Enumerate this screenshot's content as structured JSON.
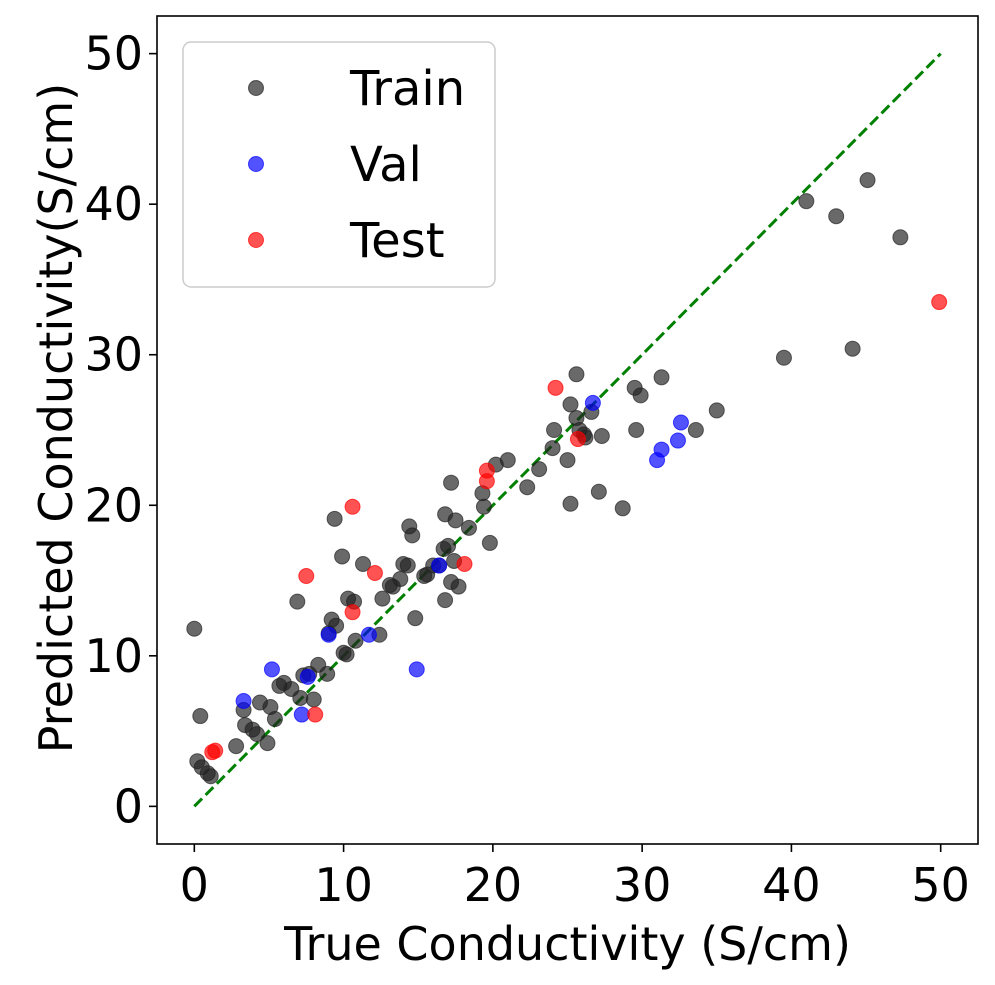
{
  "chart_data": {
    "type": "scatter",
    "xlabel": "True Conductivity (S/cm)",
    "ylabel": "Predicted Conductivity(S/cm)",
    "xlim": [
      -2.5,
      52.5
    ],
    "ylim": [
      -2.5,
      52.5
    ],
    "xticks": [
      0,
      10,
      20,
      30,
      40,
      50
    ],
    "yticks": [
      0,
      10,
      20,
      30,
      40,
      50
    ],
    "grid": false,
    "legend_position": "top-left",
    "reference_line": {
      "style": "dashed",
      "color": "#008000",
      "from": [
        0,
        0
      ],
      "to": [
        50,
        50
      ]
    },
    "series": [
      {
        "name": "Train",
        "color": "#222222",
        "points": [
          [
            0.0,
            11.8
          ],
          [
            0.4,
            6.0
          ],
          [
            0.2,
            3.0
          ],
          [
            0.5,
            2.6
          ],
          [
            0.9,
            2.2
          ],
          [
            1.1,
            2.0
          ],
          [
            2.8,
            4.0
          ],
          [
            3.4,
            5.4
          ],
          [
            3.3,
            6.4
          ],
          [
            3.9,
            5.1
          ],
          [
            4.2,
            4.8
          ],
          [
            4.4,
            6.9
          ],
          [
            4.9,
            4.2
          ],
          [
            5.1,
            6.6
          ],
          [
            5.4,
            5.8
          ],
          [
            5.7,
            8.0
          ],
          [
            6.0,
            8.2
          ],
          [
            6.5,
            7.8
          ],
          [
            6.9,
            13.6
          ],
          [
            7.1,
            7.2
          ],
          [
            7.3,
            8.7
          ],
          [
            7.7,
            8.8
          ],
          [
            8.0,
            7.1
          ],
          [
            8.3,
            9.4
          ],
          [
            8.9,
            8.8
          ],
          [
            9.0,
            11.5
          ],
          [
            9.2,
            12.4
          ],
          [
            9.4,
            19.1
          ],
          [
            9.5,
            12.0
          ],
          [
            9.9,
            16.6
          ],
          [
            10.0,
            10.2
          ],
          [
            10.2,
            10.1
          ],
          [
            10.3,
            13.8
          ],
          [
            10.7,
            13.6
          ],
          [
            10.8,
            11.0
          ],
          [
            11.3,
            16.1
          ],
          [
            12.4,
            11.4
          ],
          [
            12.6,
            13.8
          ],
          [
            13.1,
            14.7
          ],
          [
            13.3,
            14.6
          ],
          [
            13.8,
            15.1
          ],
          [
            14.0,
            16.1
          ],
          [
            14.3,
            16.0
          ],
          [
            14.4,
            18.6
          ],
          [
            14.6,
            18.0
          ],
          [
            14.8,
            12.5
          ],
          [
            15.4,
            15.3
          ],
          [
            15.6,
            15.4
          ],
          [
            16.0,
            16.0
          ],
          [
            16.4,
            16.0
          ],
          [
            16.7,
            17.1
          ],
          [
            16.8,
            19.4
          ],
          [
            16.8,
            13.7
          ],
          [
            17.0,
            17.3
          ],
          [
            17.2,
            21.5
          ],
          [
            17.2,
            14.9
          ],
          [
            17.4,
            16.3
          ],
          [
            17.5,
            19.0
          ],
          [
            17.7,
            14.6
          ],
          [
            18.4,
            18.5
          ],
          [
            19.3,
            20.8
          ],
          [
            19.4,
            19.9
          ],
          [
            19.8,
            17.5
          ],
          [
            20.2,
            22.7
          ],
          [
            21.0,
            23.0
          ],
          [
            22.3,
            21.2
          ],
          [
            23.1,
            22.4
          ],
          [
            24.0,
            23.8
          ],
          [
            24.1,
            25.0
          ],
          [
            25.0,
            23.0
          ],
          [
            25.2,
            26.7
          ],
          [
            25.2,
            20.1
          ],
          [
            25.6,
            28.7
          ],
          [
            25.6,
            25.8
          ],
          [
            25.8,
            25.0
          ],
          [
            26.1,
            24.7
          ],
          [
            26.2,
            24.5
          ],
          [
            26.6,
            26.2
          ],
          [
            27.1,
            20.9
          ],
          [
            27.3,
            24.6
          ],
          [
            28.7,
            19.8
          ],
          [
            29.5,
            27.8
          ],
          [
            29.6,
            25.0
          ],
          [
            29.9,
            27.3
          ],
          [
            31.3,
            28.5
          ],
          [
            33.6,
            25.0
          ],
          [
            35.0,
            26.3
          ],
          [
            39.5,
            29.8
          ],
          [
            41.0,
            40.2
          ],
          [
            43.0,
            39.2
          ],
          [
            44.1,
            30.4
          ],
          [
            45.1,
            41.6
          ],
          [
            47.3,
            37.8
          ]
        ]
      },
      {
        "name": "Val",
        "color": "#0000ff",
        "points": [
          [
            3.3,
            7.0
          ],
          [
            5.2,
            9.1
          ],
          [
            7.2,
            6.1
          ],
          [
            7.6,
            8.6
          ],
          [
            9.0,
            11.4
          ],
          [
            11.7,
            11.4
          ],
          [
            14.9,
            9.1
          ],
          [
            16.4,
            16.0
          ],
          [
            26.7,
            26.8
          ],
          [
            31.0,
            23.0
          ],
          [
            31.3,
            23.7
          ],
          [
            32.4,
            24.3
          ],
          [
            32.6,
            25.5
          ]
        ]
      },
      {
        "name": "Test",
        "color": "#ff0000",
        "points": [
          [
            1.2,
            3.6
          ],
          [
            1.4,
            3.7
          ],
          [
            7.5,
            15.3
          ],
          [
            8.1,
            6.1
          ],
          [
            10.6,
            19.9
          ],
          [
            10.6,
            12.9
          ],
          [
            12.1,
            15.5
          ],
          [
            18.1,
            16.1
          ],
          [
            19.6,
            22.3
          ],
          [
            19.6,
            21.6
          ],
          [
            24.2,
            27.8
          ],
          [
            25.7,
            24.4
          ],
          [
            49.9,
            33.5
          ]
        ]
      }
    ]
  }
}
